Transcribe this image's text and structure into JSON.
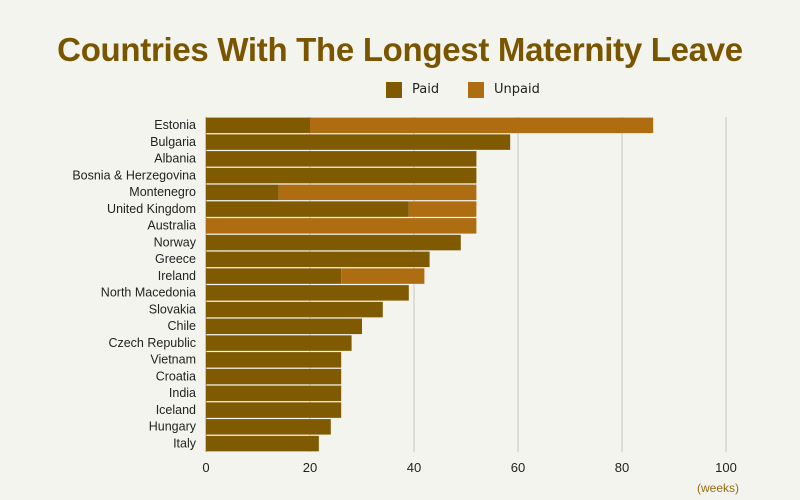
{
  "chart_data": {
    "type": "bar",
    "orientation": "horizontal",
    "stacked": true,
    "title": "Countries With The Longest Maternity Leave",
    "xlabel": "(weeks)",
    "xlim": [
      0,
      100
    ],
    "xticks": [
      0,
      20,
      40,
      60,
      80,
      100
    ],
    "grid": true,
    "legend_placement": "top",
    "categories": [
      "Estonia",
      "Bulgaria",
      "Albania",
      "Bosnia & Herzegovina",
      "Montenegro",
      "United Kingdom",
      "Australia",
      "Norway",
      "Greece",
      "Ireland",
      "North Macedonia",
      "Slovakia",
      "Chile",
      "Czech Republic",
      "Vietnam",
      "Croatia",
      "India",
      "Iceland",
      "Hungary",
      "Italy"
    ],
    "series": [
      {
        "name": "Paid",
        "color": "#7f5a00",
        "values": [
          20,
          58.5,
          52,
          52,
          14,
          39,
          0,
          49,
          43,
          26,
          39,
          34,
          30,
          28,
          26,
          26,
          26,
          26,
          24,
          21.7
        ]
      },
      {
        "name": "Unpaid",
        "color": "#ad6d10",
        "values": [
          66,
          0,
          0,
          0,
          38,
          13,
          52,
          0,
          0,
          16,
          0,
          0,
          0,
          0,
          0,
          0,
          0,
          0,
          0,
          0
        ]
      }
    ]
  }
}
